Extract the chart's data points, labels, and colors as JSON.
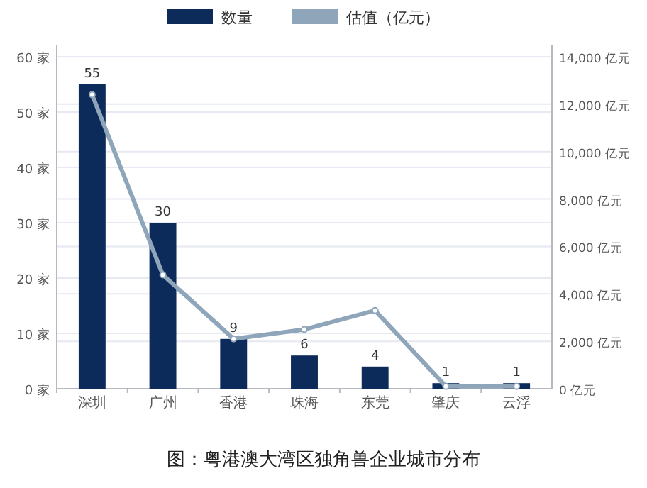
{
  "chart_data": {
    "type": "bar",
    "categories": [
      "深圳",
      "广州",
      "香港",
      "珠海",
      "东莞",
      "肇庆",
      "云浮"
    ],
    "series": [
      {
        "name": "数量",
        "color": "#0c2a5a",
        "values": [
          55,
          30,
          9,
          6,
          4,
          1,
          1
        ],
        "data_labels": true
      },
      {
        "name": "估值（亿元）",
        "type": "line",
        "axis": "y2",
        "color": "#8fa5b9",
        "marker": "circle",
        "values": [
          12400,
          4800,
          2100,
          2500,
          3300,
          100,
          100
        ]
      }
    ],
    "ylim": [
      0,
      60
    ],
    "yticks": [
      {
        "value": 0,
        "label": "0 家"
      },
      {
        "value": 10,
        "label": "10 家"
      },
      {
        "value": 20,
        "label": "20 家"
      },
      {
        "value": 30,
        "label": "30 家"
      },
      {
        "value": 40,
        "label": "40 家"
      },
      {
        "value": 50,
        "label": "50 家"
      },
      {
        "value": 60,
        "label": "60 家"
      }
    ],
    "y2lim": [
      0,
      14000
    ],
    "y2ticks": [
      {
        "value": 0,
        "label": "0 亿元"
      },
      {
        "value": 2000,
        "label": "2,000 亿元"
      },
      {
        "value": 4000,
        "label": "4,000 亿元"
      },
      {
        "value": 6000,
        "label": "6,000 亿元"
      },
      {
        "value": 8000,
        "label": "8,000 亿元"
      },
      {
        "value": 10000,
        "label": "10,000 亿元"
      },
      {
        "value": 12000,
        "label": "12,000 亿元"
      },
      {
        "value": 14000,
        "label": "14,000 亿元"
      }
    ],
    "grid": "y",
    "legend": "top",
    "annotations": [
      "图：粤港澳大湾区独角兽企业城市分布"
    ]
  }
}
